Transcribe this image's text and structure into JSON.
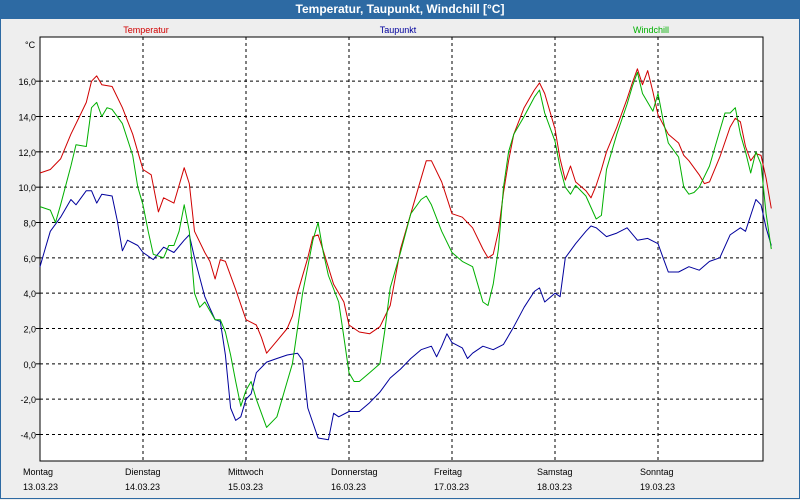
{
  "window": {
    "title": "Temperatur, Taupunkt, Windchill [°C]"
  },
  "chart_data": {
    "type": "line",
    "unit": "°C",
    "ylim": [
      -5.5,
      18.5
    ],
    "yticks": [
      -4.0,
      -2.0,
      0.0,
      2.0,
      4.0,
      6.0,
      8.0,
      10.0,
      12.0,
      14.0,
      16.0
    ],
    "ytick_labels": [
      "-4,0",
      "-2,0",
      "0,0",
      "2,0",
      "4,0",
      "6,0",
      "8,0",
      "10,0",
      "12,0",
      "14,0",
      "16,0"
    ],
    "xlim": [
      0,
      7
    ],
    "grid": true,
    "days": [
      {
        "name": "Montag",
        "date": "13.03.23"
      },
      {
        "name": "Dienstag",
        "date": "14.03.23"
      },
      {
        "name": "Mittwoch",
        "date": "15.03.23"
      },
      {
        "name": "Donnerstag",
        "date": "16.03.23"
      },
      {
        "name": "Freitag",
        "date": "17.03.23"
      },
      {
        "name": "Samstag",
        "date": "18.03.23"
      },
      {
        "name": "Sonntag",
        "date": "19.03.23"
      }
    ],
    "series": [
      {
        "name": "Temperatur",
        "color": "#d00000",
        "points": [
          [
            0,
            10.8
          ],
          [
            0.1,
            11.0
          ],
          [
            0.2,
            11.6
          ],
          [
            0.3,
            13.0
          ],
          [
            0.4,
            14.2
          ],
          [
            0.45,
            14.8
          ],
          [
            0.5,
            16.0
          ],
          [
            0.55,
            16.3
          ],
          [
            0.6,
            15.8
          ],
          [
            0.7,
            15.7
          ],
          [
            0.8,
            14.5
          ],
          [
            0.9,
            13.0
          ],
          [
            0.95,
            12.0
          ],
          [
            1.0,
            11.0
          ],
          [
            1.08,
            10.7
          ],
          [
            1.15,
            8.6
          ],
          [
            1.2,
            9.4
          ],
          [
            1.3,
            9.1
          ],
          [
            1.35,
            10.1
          ],
          [
            1.4,
            11.1
          ],
          [
            1.45,
            10.2
          ],
          [
            1.5,
            7.5
          ],
          [
            1.6,
            6.3
          ],
          [
            1.65,
            5.8
          ],
          [
            1.7,
            4.8
          ],
          [
            1.75,
            5.9
          ],
          [
            1.8,
            5.8
          ],
          [
            1.9,
            4.2
          ],
          [
            2.0,
            2.5
          ],
          [
            2.1,
            2.2
          ],
          [
            2.15,
            1.5
          ],
          [
            2.2,
            0.6
          ],
          [
            2.3,
            1.3
          ],
          [
            2.4,
            2.0
          ],
          [
            2.45,
            2.7
          ],
          [
            2.5,
            4.0
          ],
          [
            2.6,
            6.0
          ],
          [
            2.65,
            7.2
          ],
          [
            2.7,
            7.3
          ],
          [
            2.75,
            6.4
          ],
          [
            2.85,
            4.5
          ],
          [
            2.95,
            3.5
          ],
          [
            3.0,
            2.2
          ],
          [
            3.1,
            1.8
          ],
          [
            3.2,
            1.7
          ],
          [
            3.3,
            2.1
          ],
          [
            3.4,
            3.3
          ],
          [
            3.5,
            6.5
          ],
          [
            3.6,
            8.5
          ],
          [
            3.7,
            10.5
          ],
          [
            3.75,
            11.5
          ],
          [
            3.8,
            11.5
          ],
          [
            3.9,
            10.3
          ],
          [
            4.0,
            8.5
          ],
          [
            4.1,
            8.3
          ],
          [
            4.2,
            7.7
          ],
          [
            4.3,
            6.5
          ],
          [
            4.35,
            6.0
          ],
          [
            4.4,
            6.2
          ],
          [
            4.45,
            7.5
          ],
          [
            4.5,
            9.7
          ],
          [
            4.55,
            11.5
          ],
          [
            4.6,
            13.0
          ],
          [
            4.7,
            14.5
          ],
          [
            4.8,
            15.5
          ],
          [
            4.85,
            15.9
          ],
          [
            4.9,
            15.3
          ],
          [
            5.0,
            13.3
          ],
          [
            5.05,
            11.6
          ],
          [
            5.1,
            10.4
          ],
          [
            5.15,
            11.2
          ],
          [
            5.2,
            10.3
          ],
          [
            5.3,
            9.8
          ],
          [
            5.35,
            9.4
          ],
          [
            5.4,
            10.1
          ],
          [
            5.45,
            11.0
          ],
          [
            5.5,
            12.0
          ],
          [
            5.6,
            13.4
          ],
          [
            5.7,
            15.0
          ],
          [
            5.75,
            15.9
          ],
          [
            5.8,
            16.7
          ],
          [
            5.85,
            15.8
          ],
          [
            5.9,
            16.6
          ],
          [
            5.95,
            15.4
          ],
          [
            6.0,
            14.1
          ],
          [
            6.1,
            13.0
          ],
          [
            6.2,
            12.5
          ],
          [
            6.25,
            11.8
          ],
          [
            6.3,
            11.5
          ],
          [
            6.4,
            10.7
          ],
          [
            6.45,
            10.2
          ],
          [
            6.5,
            10.3
          ],
          [
            6.6,
            11.7
          ],
          [
            6.7,
            13.4
          ],
          [
            6.75,
            13.9
          ],
          [
            6.8,
            13.7
          ],
          [
            6.85,
            12.3
          ],
          [
            6.9,
            11.5
          ],
          [
            6.95,
            11.9
          ],
          [
            7.0,
            11.8
          ],
          [
            7.05,
            10.5
          ],
          [
            7.1,
            8.8
          ]
        ]
      },
      {
        "name": "Taupunkt",
        "color": "#00009c",
        "points": [
          [
            0,
            5.5
          ],
          [
            0.05,
            6.5
          ],
          [
            0.1,
            7.5
          ],
          [
            0.2,
            8.3
          ],
          [
            0.3,
            9.3
          ],
          [
            0.35,
            9.0
          ],
          [
            0.45,
            9.8
          ],
          [
            0.5,
            9.8
          ],
          [
            0.55,
            9.1
          ],
          [
            0.6,
            9.6
          ],
          [
            0.7,
            9.5
          ],
          [
            0.75,
            8.1
          ],
          [
            0.8,
            6.4
          ],
          [
            0.85,
            7.0
          ],
          [
            0.95,
            6.7
          ],
          [
            1.0,
            6.3
          ],
          [
            1.1,
            5.9
          ],
          [
            1.2,
            6.6
          ],
          [
            1.3,
            6.3
          ],
          [
            1.4,
            7.0
          ],
          [
            1.45,
            7.3
          ],
          [
            1.5,
            6.0
          ],
          [
            1.6,
            3.8
          ],
          [
            1.7,
            2.5
          ],
          [
            1.75,
            2.4
          ],
          [
            1.8,
            0.5
          ],
          [
            1.85,
            -2.5
          ],
          [
            1.9,
            -3.2
          ],
          [
            1.95,
            -3.0
          ],
          [
            2.0,
            -2.0
          ],
          [
            2.05,
            -1.7
          ],
          [
            2.1,
            -0.5
          ],
          [
            2.2,
            0.1
          ],
          [
            2.3,
            0.3
          ],
          [
            2.4,
            0.5
          ],
          [
            2.5,
            0.6
          ],
          [
            2.55,
            0.2
          ],
          [
            2.6,
            -2.5
          ],
          [
            2.7,
            -4.2
          ],
          [
            2.8,
            -4.3
          ],
          [
            2.85,
            -2.8
          ],
          [
            2.9,
            -3.0
          ],
          [
            3.0,
            -2.7
          ],
          [
            3.1,
            -2.7
          ],
          [
            3.2,
            -2.2
          ],
          [
            3.3,
            -1.6
          ],
          [
            3.4,
            -0.8
          ],
          [
            3.5,
            -0.3
          ],
          [
            3.6,
            0.3
          ],
          [
            3.7,
            0.8
          ],
          [
            3.8,
            1.0
          ],
          [
            3.85,
            0.4
          ],
          [
            3.9,
            1.0
          ],
          [
            3.95,
            1.7
          ],
          [
            4.0,
            1.2
          ],
          [
            4.1,
            0.9
          ],
          [
            4.15,
            0.3
          ],
          [
            4.2,
            0.6
          ],
          [
            4.3,
            1.0
          ],
          [
            4.4,
            0.8
          ],
          [
            4.5,
            1.1
          ],
          [
            4.6,
            2.1
          ],
          [
            4.7,
            3.2
          ],
          [
            4.8,
            4.1
          ],
          [
            4.85,
            4.3
          ],
          [
            4.9,
            3.5
          ],
          [
            5.0,
            4.0
          ],
          [
            5.05,
            3.8
          ],
          [
            5.1,
            6.0
          ],
          [
            5.2,
            6.8
          ],
          [
            5.3,
            7.5
          ],
          [
            5.35,
            7.8
          ],
          [
            5.4,
            7.7
          ],
          [
            5.5,
            7.2
          ],
          [
            5.6,
            7.4
          ],
          [
            5.7,
            7.7
          ],
          [
            5.8,
            7.0
          ],
          [
            5.9,
            7.1
          ],
          [
            6.0,
            6.8
          ],
          [
            6.05,
            6.0
          ],
          [
            6.1,
            5.2
          ],
          [
            6.2,
            5.2
          ],
          [
            6.3,
            5.5
          ],
          [
            6.4,
            5.3
          ],
          [
            6.5,
            5.8
          ],
          [
            6.6,
            6.0
          ],
          [
            6.7,
            7.3
          ],
          [
            6.8,
            7.7
          ],
          [
            6.85,
            7.5
          ],
          [
            6.9,
            8.4
          ],
          [
            6.95,
            9.3
          ],
          [
            7.0,
            9.0
          ],
          [
            7.05,
            7.7
          ],
          [
            7.1,
            6.7
          ]
        ]
      },
      {
        "name": "Windchill",
        "color": "#00b000",
        "points": [
          [
            0,
            8.9
          ],
          [
            0.1,
            8.7
          ],
          [
            0.15,
            8.0
          ],
          [
            0.2,
            9.0
          ],
          [
            0.3,
            11.2
          ],
          [
            0.35,
            12.4
          ],
          [
            0.45,
            12.3
          ],
          [
            0.5,
            14.5
          ],
          [
            0.55,
            14.8
          ],
          [
            0.6,
            14.0
          ],
          [
            0.65,
            14.5
          ],
          [
            0.7,
            14.4
          ],
          [
            0.8,
            13.6
          ],
          [
            0.9,
            11.8
          ],
          [
            0.95,
            10.0
          ],
          [
            1.0,
            9.0
          ],
          [
            1.05,
            7.5
          ],
          [
            1.1,
            6.2
          ],
          [
            1.2,
            6.0
          ],
          [
            1.25,
            6.7
          ],
          [
            1.3,
            6.7
          ],
          [
            1.35,
            7.5
          ],
          [
            1.4,
            9.0
          ],
          [
            1.45,
            7.5
          ],
          [
            1.5,
            4.0
          ],
          [
            1.55,
            3.2
          ],
          [
            1.6,
            3.5
          ],
          [
            1.7,
            2.5
          ],
          [
            1.75,
            2.5
          ],
          [
            1.8,
            1.8
          ],
          [
            1.85,
            0.5
          ],
          [
            1.9,
            -1.0
          ],
          [
            1.95,
            -2.4
          ],
          [
            2.0,
            -1.5
          ],
          [
            2.05,
            -1.0
          ],
          [
            2.1,
            -2.0
          ],
          [
            2.2,
            -3.6
          ],
          [
            2.3,
            -3.0
          ],
          [
            2.4,
            -1.0
          ],
          [
            2.45,
            0.0
          ],
          [
            2.5,
            2.0
          ],
          [
            2.55,
            4.0
          ],
          [
            2.6,
            5.5
          ],
          [
            2.65,
            7.0
          ],
          [
            2.7,
            8.0
          ],
          [
            2.75,
            6.3
          ],
          [
            2.8,
            5.0
          ],
          [
            2.9,
            3.5
          ],
          [
            2.95,
            1.5
          ],
          [
            3.0,
            -0.5
          ],
          [
            3.05,
            -1.0
          ],
          [
            3.1,
            -1.0
          ],
          [
            3.2,
            -0.5
          ],
          [
            3.3,
            0.0
          ],
          [
            3.35,
            2.0
          ],
          [
            3.4,
            4.3
          ],
          [
            3.5,
            6.3
          ],
          [
            3.6,
            8.5
          ],
          [
            3.7,
            9.3
          ],
          [
            3.75,
            9.5
          ],
          [
            3.8,
            9.0
          ],
          [
            3.9,
            7.5
          ],
          [
            4.0,
            6.3
          ],
          [
            4.1,
            5.8
          ],
          [
            4.2,
            5.5
          ],
          [
            4.3,
            3.5
          ],
          [
            4.35,
            3.3
          ],
          [
            4.4,
            4.5
          ],
          [
            4.45,
            6.5
          ],
          [
            4.5,
            10.0
          ],
          [
            4.55,
            12.0
          ],
          [
            4.6,
            13.0
          ],
          [
            4.7,
            14.0
          ],
          [
            4.8,
            15.1
          ],
          [
            4.85,
            15.5
          ],
          [
            4.9,
            14.2
          ],
          [
            5.0,
            12.6
          ],
          [
            5.05,
            11.1
          ],
          [
            5.1,
            10.0
          ],
          [
            5.15,
            9.6
          ],
          [
            5.2,
            10.1
          ],
          [
            5.3,
            9.5
          ],
          [
            5.4,
            8.2
          ],
          [
            5.45,
            8.4
          ],
          [
            5.5,
            11.0
          ],
          [
            5.6,
            13.0
          ],
          [
            5.7,
            14.7
          ],
          [
            5.75,
            15.7
          ],
          [
            5.8,
            16.5
          ],
          [
            5.85,
            15.3
          ],
          [
            5.9,
            14.8
          ],
          [
            5.95,
            14.3
          ],
          [
            6.0,
            15.3
          ],
          [
            6.05,
            13.8
          ],
          [
            6.1,
            12.5
          ],
          [
            6.2,
            11.7
          ],
          [
            6.25,
            10.0
          ],
          [
            6.3,
            9.6
          ],
          [
            6.35,
            9.7
          ],
          [
            6.4,
            10.0
          ],
          [
            6.5,
            11.2
          ],
          [
            6.6,
            13.2
          ],
          [
            6.65,
            14.2
          ],
          [
            6.7,
            14.2
          ],
          [
            6.75,
            14.5
          ],
          [
            6.8,
            13.0
          ],
          [
            6.85,
            12.0
          ],
          [
            6.9,
            10.8
          ],
          [
            6.95,
            12.0
          ],
          [
            7.0,
            11.3
          ],
          [
            7.05,
            8.5
          ],
          [
            7.1,
            6.5
          ]
        ]
      }
    ]
  }
}
